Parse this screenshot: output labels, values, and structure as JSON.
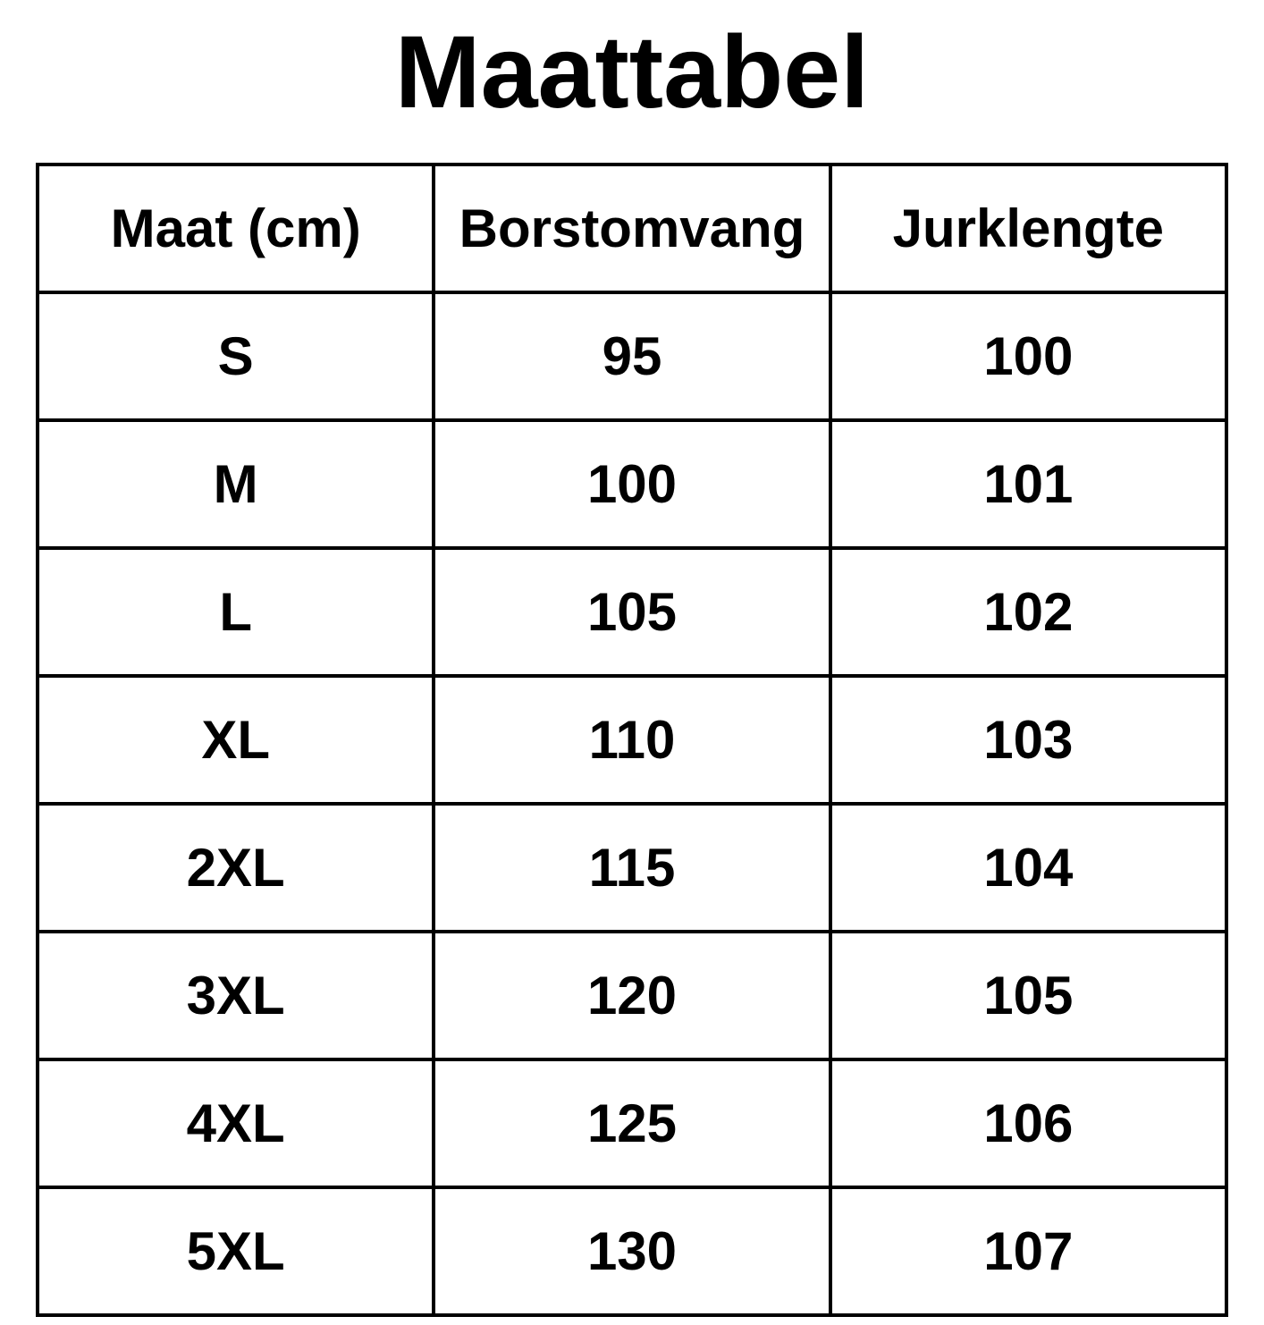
{
  "title": "Maattabel",
  "colors": {
    "text": "#000000",
    "background": "#ffffff",
    "border": "#000000"
  },
  "chart_data": {
    "type": "table",
    "title": "Maattabel",
    "columns": [
      "Maat (cm)",
      "Borstomvang",
      "Jurklengte"
    ],
    "rows": [
      [
        "S",
        "95",
        "100"
      ],
      [
        "M",
        "100",
        "101"
      ],
      [
        "L",
        "105",
        "102"
      ],
      [
        "XL",
        "110",
        "103"
      ],
      [
        "2XL",
        "115",
        "104"
      ],
      [
        "3XL",
        "120",
        "105"
      ],
      [
        "4XL",
        "125",
        "106"
      ],
      [
        "5XL",
        "130",
        "107"
      ]
    ],
    "units": "cm",
    "layout_hints": {
      "grid": "full-borders",
      "header_row": true,
      "alignment": "center"
    }
  }
}
